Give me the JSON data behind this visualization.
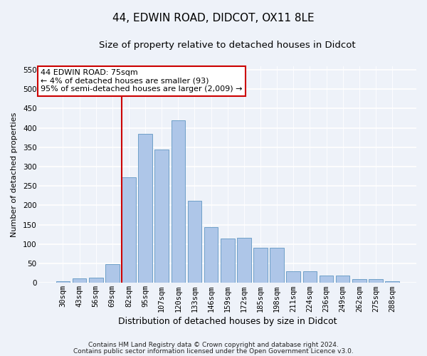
{
  "title1": "44, EDWIN ROAD, DIDCOT, OX11 8LE",
  "title2": "Size of property relative to detached houses in Didcot",
  "xlabel": "Distribution of detached houses by size in Didcot",
  "ylabel": "Number of detached properties",
  "categories": [
    "30sqm",
    "43sqm",
    "56sqm",
    "69sqm",
    "82sqm",
    "95sqm",
    "107sqm",
    "120sqm",
    "133sqm",
    "146sqm",
    "159sqm",
    "172sqm",
    "185sqm",
    "198sqm",
    "211sqm",
    "224sqm",
    "236sqm",
    "249sqm",
    "262sqm",
    "275sqm",
    "288sqm"
  ],
  "values": [
    5,
    11,
    13,
    48,
    272,
    385,
    344,
    420,
    211,
    143,
    115,
    116,
    90,
    90,
    30,
    30,
    18,
    18,
    10,
    10,
    4
  ],
  "bar_color": "#aec6e8",
  "bar_edge_color": "#6fa0c8",
  "vline_color": "#cc0000",
  "vline_x": 3.57,
  "annotation_text": "44 EDWIN ROAD: 75sqm\n← 4% of detached houses are smaller (93)\n95% of semi-detached houses are larger (2,009) →",
  "annotation_box_color": "#ffffff",
  "annotation_box_edge": "#cc0000",
  "ylim": [
    0,
    560
  ],
  "yticks": [
    0,
    50,
    100,
    150,
    200,
    250,
    300,
    350,
    400,
    450,
    500,
    550
  ],
  "footer1": "Contains HM Land Registry data © Crown copyright and database right 2024.",
  "footer2": "Contains public sector information licensed under the Open Government Licence v3.0.",
  "bg_color": "#eef2f9",
  "plot_bg_color": "#eef2f9",
  "title1_fontsize": 11,
  "title2_fontsize": 9.5,
  "tick_fontsize": 7.5,
  "xlabel_fontsize": 9,
  "ylabel_fontsize": 8,
  "footer_fontsize": 6.5,
  "annotation_fontsize": 8
}
